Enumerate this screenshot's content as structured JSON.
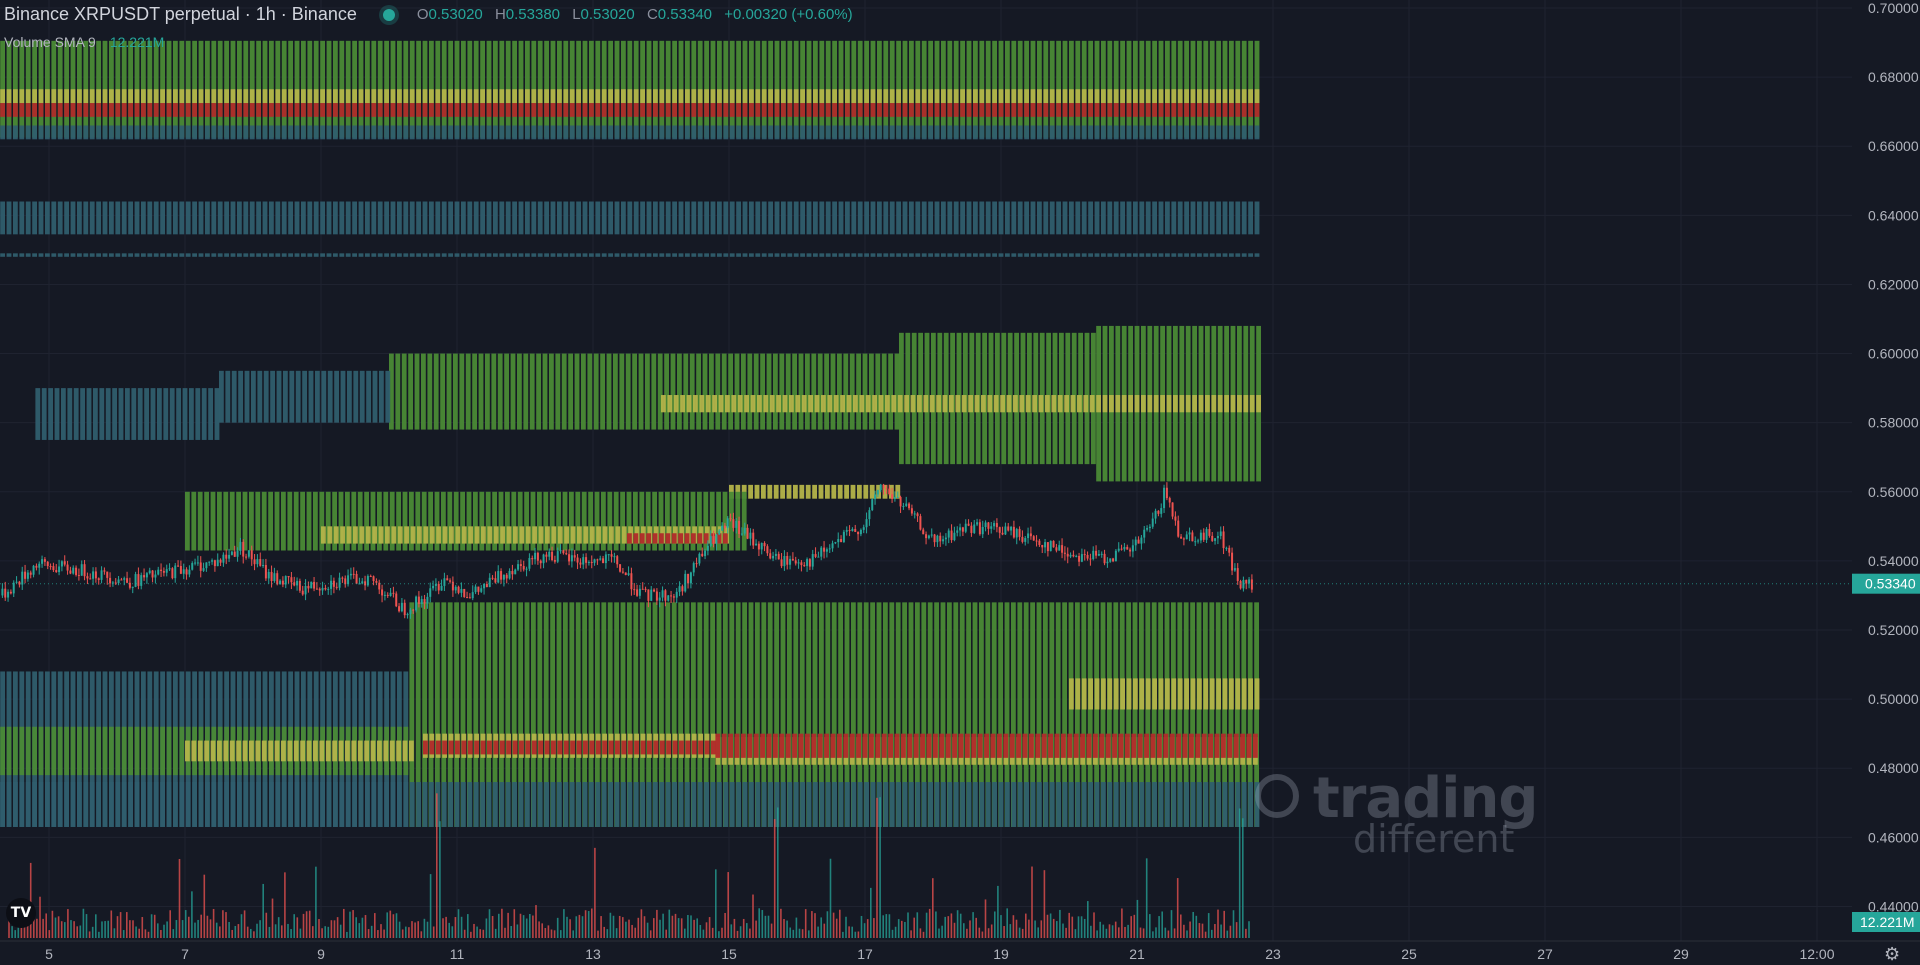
{
  "header": {
    "title": "Binance XRPUSDT perpetual · 1h · Binance",
    "ohlc": [
      {
        "k": "O",
        "v": "0.53020"
      },
      {
        "k": "H",
        "v": "0.53380"
      },
      {
        "k": "L",
        "v": "0.53020"
      },
      {
        "k": "C",
        "v": "0.53340"
      },
      {
        "k": "",
        "v": "+0.00320 (+0.60%)"
      }
    ],
    "volume_label": "Volume SMA 9",
    "volume_value": "12.221M"
  },
  "watermark": {
    "line1": "trading",
    "line2": "different"
  },
  "logo_text": "TV",
  "colors": {
    "bg": "#151924",
    "up": "#26a69a",
    "down": "#ef5350",
    "grid": "#1f2330",
    "heat_low": "#2f5e6e",
    "heat_mid": "#4a8a36",
    "heat_high": "#b4b44a",
    "heat_max": "#b02a2a"
  },
  "chart_data": {
    "type": "line",
    "title": "Binance XRPUSDT perpetual · 1h · Binance",
    "ylim": [
      0.43,
      0.7
    ],
    "y_ticks": [
      "0.70000",
      "0.68000",
      "0.66000",
      "0.64000",
      "0.62000",
      "0.60000",
      "0.58000",
      "0.56000",
      "0.54000",
      "0.52000",
      "0.50000",
      "0.48000",
      "0.46000",
      "0.44000"
    ],
    "x_ticks": [
      "5",
      "7",
      "9",
      "11",
      "13",
      "15",
      "17",
      "19",
      "21",
      "23",
      "25",
      "27",
      "29",
      "12:00"
    ],
    "last_price_label": "0.53340",
    "volume_label": "12.221M",
    "price_series": {
      "name": "XRPUSDT",
      "x": [
        4.3,
        4.8,
        5.5,
        6.2,
        6.8,
        7.5,
        7.8,
        8.2,
        8.7,
        9.2,
        9.7,
        10.2,
        10.5,
        10.8,
        11.2,
        11.8,
        12.3,
        12.8,
        13.3,
        13.7,
        14.2,
        14.7,
        15.0,
        15.4,
        15.7,
        16.2,
        16.7,
        17.0,
        17.2,
        17.6,
        18.0,
        18.5,
        19.0,
        19.5,
        20.0,
        20.5,
        20.9,
        21.2,
        21.4,
        21.6,
        21.9,
        22.2,
        22.5,
        22.7
      ],
      "y": [
        0.53,
        0.539,
        0.537,
        0.534,
        0.537,
        0.54,
        0.544,
        0.536,
        0.532,
        0.534,
        0.535,
        0.526,
        0.529,
        0.535,
        0.53,
        0.538,
        0.542,
        0.54,
        0.54,
        0.53,
        0.53,
        0.545,
        0.551,
        0.545,
        0.54,
        0.54,
        0.547,
        0.551,
        0.562,
        0.555,
        0.545,
        0.55,
        0.549,
        0.546,
        0.542,
        0.541,
        0.543,
        0.55,
        0.56,
        0.548,
        0.547,
        0.548,
        0.533,
        0.533
      ]
    },
    "heatmap": {
      "name": "liquidation heatmap",
      "bands": [
        {
          "y0": 0.6625,
          "y1": 0.6905,
          "x0": 4.0,
          "x1": 22.8,
          "level": 2
        },
        {
          "y0": 0.6685,
          "y1": 0.6725,
          "x0": 4.0,
          "x1": 22.8,
          "level": 4
        },
        {
          "y0": 0.6725,
          "y1": 0.6765,
          "x0": 4.0,
          "x1": 22.8,
          "level": 3
        },
        {
          "y0": 0.662,
          "y1": 0.666,
          "x0": 4.0,
          "x1": 22.8,
          "level": 1
        },
        {
          "y0": 0.6345,
          "y1": 0.644,
          "x0": 4.0,
          "x1": 22.8,
          "level": 1
        },
        {
          "y0": 0.628,
          "y1": 0.629,
          "x0": 4.0,
          "x1": 22.8,
          "level": 1
        },
        {
          "y0": 0.563,
          "y1": 0.608,
          "x0": 20.4,
          "x1": 22.8,
          "level": 2
        },
        {
          "y0": 0.568,
          "y1": 0.606,
          "x0": 17.5,
          "x1": 20.4,
          "level": 2
        },
        {
          "y0": 0.578,
          "y1": 0.6,
          "x0": 10.0,
          "x1": 17.5,
          "level": 2
        },
        {
          "y0": 0.58,
          "y1": 0.595,
          "x0": 7.5,
          "x1": 10.0,
          "level": 1
        },
        {
          "y0": 0.575,
          "y1": 0.59,
          "x0": 4.8,
          "x1": 7.5,
          "level": 1
        },
        {
          "y0": 0.583,
          "y1": 0.588,
          "x0": 14.0,
          "x1": 22.8,
          "level": 3
        },
        {
          "y0": 0.558,
          "y1": 0.562,
          "x0": 15.0,
          "x1": 17.5,
          "level": 3
        },
        {
          "y0": 0.543,
          "y1": 0.56,
          "x0": 7.0,
          "x1": 15.2,
          "level": 2
        },
        {
          "y0": 0.545,
          "y1": 0.55,
          "x0": 9.0,
          "x1": 15.0,
          "level": 3
        },
        {
          "y0": 0.545,
          "y1": 0.548,
          "x0": 13.5,
          "x1": 15.0,
          "level": 4
        },
        {
          "y0": 0.463,
          "y1": 0.528,
          "x0": 10.3,
          "x1": 22.8,
          "level": 2
        },
        {
          "y0": 0.463,
          "y1": 0.508,
          "x0": 4.0,
          "x1": 10.3,
          "level": 1
        },
        {
          "y0": 0.478,
          "y1": 0.492,
          "x0": 4.0,
          "x1": 10.3,
          "level": 2
        },
        {
          "y0": 0.482,
          "y1": 0.488,
          "x0": 7.0,
          "x1": 10.3,
          "level": 3
        },
        {
          "y0": 0.497,
          "y1": 0.506,
          "x0": 20.0,
          "x1": 22.8,
          "level": 3
        },
        {
          "y0": 0.481,
          "y1": 0.489,
          "x0": 14.8,
          "x1": 22.8,
          "level": 3
        },
        {
          "y0": 0.483,
          "y1": 0.49,
          "x0": 10.5,
          "x1": 14.8,
          "level": 3
        },
        {
          "y0": 0.484,
          "y1": 0.488,
          "x0": 10.5,
          "x1": 14.8,
          "level": 4
        },
        {
          "y0": 0.483,
          "y1": 0.49,
          "x0": 14.8,
          "x1": 22.8,
          "level": 4
        },
        {
          "y0": 0.463,
          "y1": 0.476,
          "x0": 4.0,
          "x1": 22.8,
          "level": 1
        }
      ]
    }
  }
}
